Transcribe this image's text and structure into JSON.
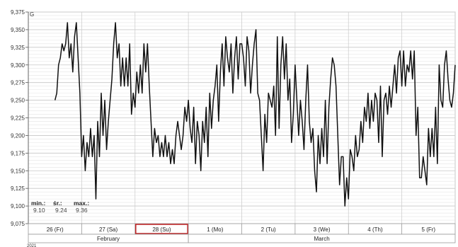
{
  "chart_data": {
    "type": "line",
    "ylim": [
      9.075,
      9.375
    ],
    "yticks": [
      "9,075",
      "9,100",
      "9,125",
      "9,150",
      "9,175",
      "9,200",
      "9,225",
      "9,250",
      "9,275",
      "9,300",
      "9,325",
      "9,350",
      "9,375"
    ],
    "days": [
      "26 (Fr)",
      "27 (Sa)",
      "28 (Su)",
      "1 (Mo)",
      "2 (Tu)",
      "3 (We)",
      "4 (Th)",
      "5 (Fr)"
    ],
    "highlighted_day": "28 (Su)",
    "months": [
      "February",
      "March"
    ],
    "year": "2021",
    "axis_glyph": "G",
    "stats": [
      {
        "label": "min.:",
        "value": "9.10"
      },
      {
        "label": "śr.:",
        "value": "9.24"
      },
      {
        "label": "max.:",
        "value": "9.36"
      }
    ],
    "x_start": 0.5,
    "x_end": 8.0,
    "series": [
      {
        "values": [
          9.25,
          9.26,
          9.3,
          9.31,
          9.33,
          9.32,
          9.33,
          9.36,
          9.31,
          9.33,
          9.29,
          9.34,
          9.36,
          9.31,
          9.26,
          9.17,
          9.2,
          9.15,
          9.19,
          9.17,
          9.21,
          9.17,
          9.2,
          9.11,
          9.22,
          9.17,
          9.26,
          9.2,
          9.25,
          9.18,
          9.22,
          9.25,
          9.28,
          9.33,
          9.36,
          9.31,
          9.33,
          9.27,
          9.31,
          9.27,
          9.31,
          9.27,
          9.33,
          9.23,
          9.26,
          9.24,
          9.29,
          9.26,
          9.3,
          9.26,
          9.33,
          9.29,
          9.33,
          9.27,
          9.22,
          9.17,
          9.21,
          9.19,
          9.2,
          9.17,
          9.19,
          9.17,
          9.2,
          9.17,
          9.19,
          9.16,
          9.18,
          9.16,
          9.2,
          9.22,
          9.2,
          9.18,
          9.2,
          9.24,
          9.22,
          9.25,
          9.21,
          9.19,
          9.24,
          9.16,
          9.22,
          9.2,
          9.15,
          9.22,
          9.19,
          9.24,
          9.17,
          9.26,
          9.21,
          9.25,
          9.27,
          9.3,
          9.22,
          9.29,
          9.33,
          9.27,
          9.34,
          9.31,
          9.29,
          9.33,
          9.26,
          9.31,
          9.34,
          9.28,
          9.33,
          9.33,
          9.31,
          9.27,
          9.34,
          9.32,
          9.26,
          9.3,
          9.33,
          9.35,
          9.26,
          9.25,
          9.2,
          9.15,
          9.23,
          9.19,
          9.26,
          9.25,
          9.24,
          9.27,
          9.2,
          9.34,
          9.21,
          9.3,
          9.34,
          9.28,
          9.33,
          9.25,
          9.28,
          9.19,
          9.23,
          9.3,
          9.25,
          9.2,
          9.25,
          9.22,
          9.18,
          9.25,
          9.3,
          9.22,
          9.19,
          9.21,
          9.15,
          9.12,
          9.2,
          9.16,
          9.21,
          9.17,
          9.25,
          9.16,
          9.24,
          9.28,
          9.31,
          9.3,
          9.27,
          9.2,
          9.13,
          9.17,
          9.17,
          9.1,
          9.14,
          9.11,
          9.18,
          9.17,
          9.15,
          9.2,
          9.17,
          9.18,
          9.22,
          9.19,
          9.24,
          9.22,
          9.26,
          9.21,
          9.25,
          9.22,
          9.26,
          9.25,
          9.19,
          9.27,
          9.17,
          9.25,
          9.26,
          9.23,
          9.27,
          9.24,
          9.27,
          9.3,
          9.26,
          9.31,
          9.32,
          9.27,
          9.32,
          9.27,
          9.3,
          9.29,
          9.32,
          9.28,
          9.32,
          9.2,
          9.24,
          9.14,
          9.14,
          9.17,
          9.15,
          9.13,
          9.21,
          9.17,
          9.21,
          9.17,
          9.24,
          9.16,
          9.3,
          9.25,
          9.24,
          9.3,
          9.32,
          9.28,
          9.25,
          9.24,
          9.26,
          9.3
        ]
      }
    ]
  }
}
